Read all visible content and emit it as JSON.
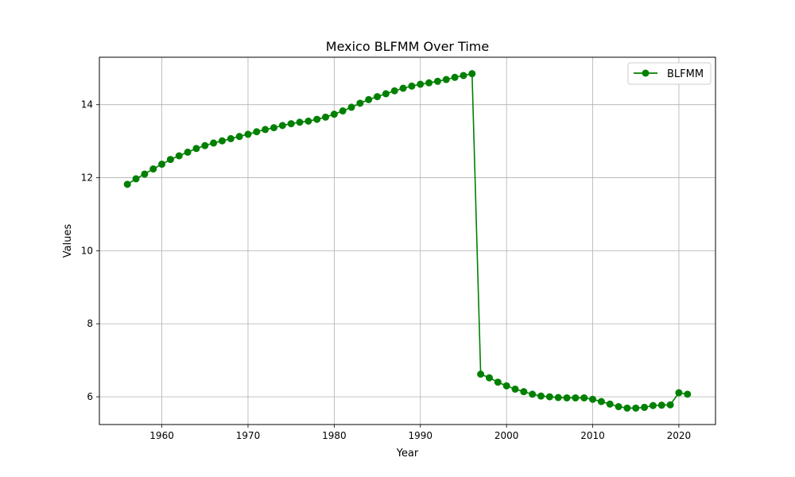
{
  "chart_data": {
    "type": "line",
    "title": "Mexico BLFMM Over Time",
    "xlabel": "Year",
    "ylabel": "Values",
    "xlim": [
      1952.75,
      2024.25
    ],
    "ylim": [
      5.24,
      15.3
    ],
    "xticks": [
      1960,
      1970,
      1980,
      1990,
      2000,
      2010,
      2020
    ],
    "yticks": [
      6,
      8,
      10,
      12,
      14
    ],
    "grid": true,
    "legend_position": "top-right",
    "series": [
      {
        "name": "BLFMM",
        "color": "#008000",
        "marker": "circle",
        "x": [
          1956,
          1957,
          1958,
          1959,
          1960,
          1961,
          1962,
          1963,
          1964,
          1965,
          1966,
          1967,
          1968,
          1969,
          1970,
          1971,
          1972,
          1973,
          1974,
          1975,
          1976,
          1977,
          1978,
          1979,
          1980,
          1981,
          1982,
          1983,
          1984,
          1985,
          1986,
          1987,
          1988,
          1989,
          1990,
          1991,
          1992,
          1993,
          1994,
          1995,
          1996,
          1997,
          1998,
          1999,
          2000,
          2001,
          2002,
          2003,
          2004,
          2005,
          2006,
          2007,
          2008,
          2009,
          2010,
          2011,
          2012,
          2013,
          2014,
          2015,
          2016,
          2017,
          2018,
          2019,
          2020,
          2021
        ],
        "y": [
          11.82,
          11.97,
          12.1,
          12.24,
          12.37,
          12.5,
          12.6,
          12.7,
          12.8,
          12.88,
          12.95,
          13.01,
          13.07,
          13.13,
          13.19,
          13.26,
          13.32,
          13.37,
          13.43,
          13.48,
          13.52,
          13.55,
          13.6,
          13.66,
          13.74,
          13.83,
          13.93,
          14.04,
          14.14,
          14.22,
          14.3,
          14.38,
          14.45,
          14.51,
          14.56,
          14.6,
          14.64,
          14.69,
          14.75,
          14.8,
          14.85,
          6.62,
          6.52,
          6.4,
          6.3,
          6.21,
          6.14,
          6.07,
          6.02,
          6.0,
          5.98,
          5.97,
          5.97,
          5.97,
          5.93,
          5.87,
          5.8,
          5.73,
          5.69,
          5.69,
          5.71,
          5.76,
          5.77,
          5.78,
          6.11,
          6.07
        ]
      }
    ]
  }
}
